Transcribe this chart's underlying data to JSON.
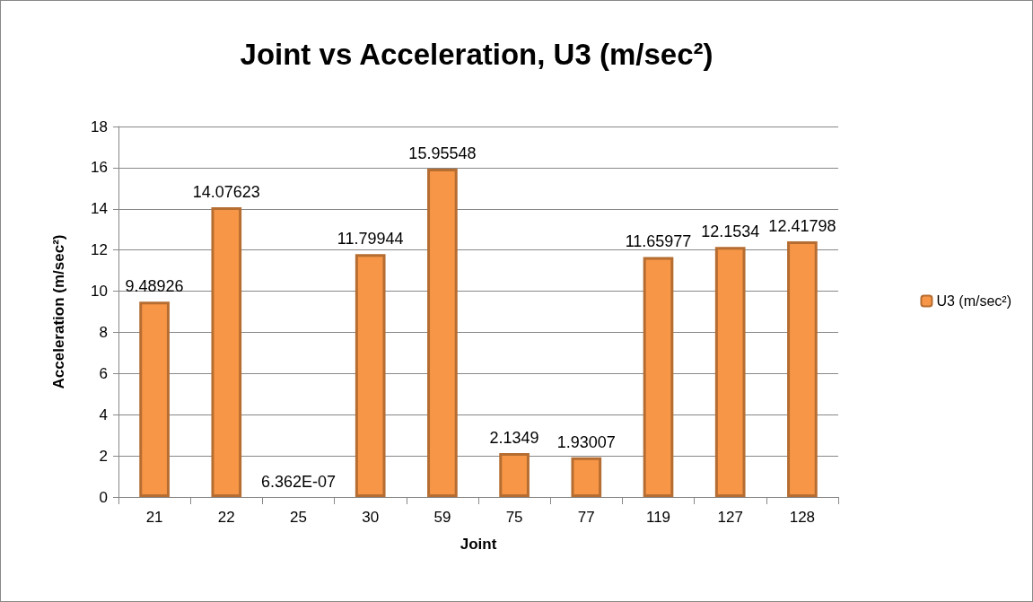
{
  "chart_data": {
    "type": "bar",
    "title": "Joint vs Acceleration, U3 (m/sec²)",
    "xlabel": "Joint",
    "ylabel": "Acceleration (m/sec²)",
    "categories": [
      "21",
      "22",
      "25",
      "30",
      "59",
      "75",
      "77",
      "119",
      "127",
      "128"
    ],
    "series": [
      {
        "name": "U3 (m/sec²)",
        "color": "#f79646",
        "values": [
          9.48926,
          14.07623,
          6.362e-07,
          11.79944,
          15.95548,
          2.1349,
          1.93007,
          11.65977,
          12.1534,
          12.41798
        ],
        "value_labels": [
          "9.48926",
          "14.07623",
          "6.362E-07",
          "11.79944",
          "15.95548",
          "2.1349",
          "1.93007",
          "11.65977",
          "12.1534",
          "12.41798"
        ]
      }
    ],
    "ylim": [
      0,
      18
    ],
    "yticks": [
      0,
      2,
      4,
      6,
      8,
      10,
      12,
      14,
      16,
      18
    ],
    "grid": "y",
    "legend": "right"
  }
}
